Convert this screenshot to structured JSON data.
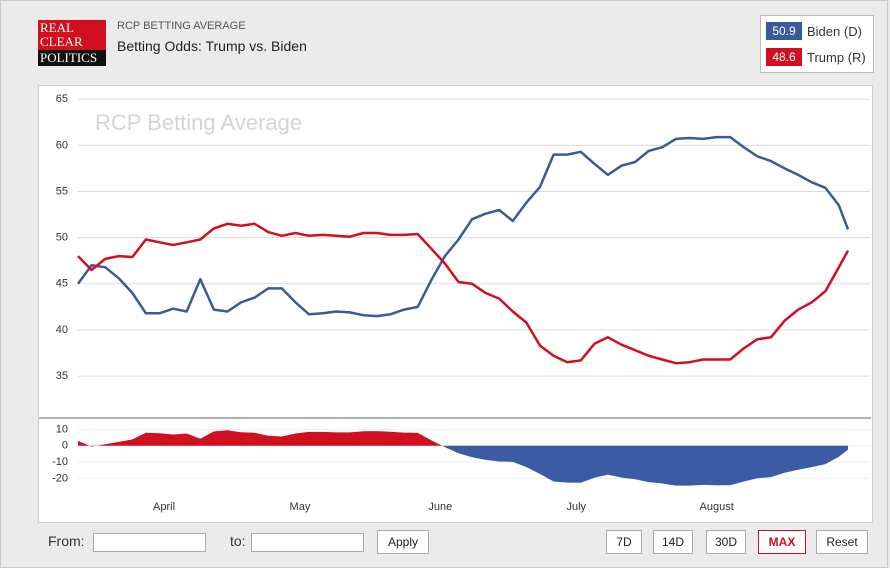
{
  "logo": [
    "REAL",
    "CLEAR",
    "POLITICS"
  ],
  "header": {
    "kicker": "RCP BETTING AVERAGE",
    "title": "Betting Odds: Trump vs. Biden"
  },
  "chart_data": [
    {
      "type": "line",
      "watermark": "RCP Betting Average",
      "x": [
        0,
        3,
        6,
        9,
        12,
        15,
        18,
        21,
        24,
        27,
        30,
        33,
        36,
        39,
        42,
        45,
        48,
        51,
        54,
        57,
        60,
        63,
        66,
        69,
        72,
        75,
        78,
        81,
        84,
        87,
        90,
        93,
        96,
        99,
        102,
        105,
        108,
        111,
        114,
        117,
        120,
        123,
        126,
        129,
        132,
        135,
        138,
        141,
        144,
        147,
        150,
        153,
        156,
        159,
        162,
        165,
        168,
        170
      ],
      "xlim": [
        0,
        170
      ],
      "ylim": [
        31,
        66
      ],
      "yticks": [
        35,
        40,
        45,
        50,
        55,
        60,
        65
      ],
      "grid": true,
      "series": [
        {
          "name": "Biden (D)",
          "color": "#3a5a9b",
          "values": [
            45,
            47,
            46.8,
            45.6,
            44,
            41.8,
            41.8,
            42.3,
            42,
            45.5,
            42.2,
            42,
            43,
            43.5,
            44.5,
            44.5,
            43,
            41.7,
            41.8,
            42,
            41.9,
            41.6,
            41.5,
            41.7,
            42.2,
            42.5,
            45.4,
            48,
            49.8,
            52,
            52.6,
            53,
            51.8,
            53.8,
            55.5,
            59,
            59,
            59.3,
            58,
            56.8,
            57.8,
            58.2,
            59.4,
            59.8,
            60.7,
            60.8,
            60.7,
            60.9,
            60.9,
            59.8,
            58.8,
            58.3,
            57.5,
            56.8,
            56,
            55.4,
            53.5,
            50.9
          ]
        },
        {
          "name": "Trump (R)",
          "color": "#d0101e",
          "values": [
            48,
            46.5,
            47.7,
            48,
            47.9,
            49.8,
            49.5,
            49.2,
            49.5,
            49.8,
            51,
            51.5,
            51.3,
            51.5,
            50.6,
            50.2,
            50.5,
            50.2,
            50.3,
            50.2,
            50.1,
            50.5,
            50.5,
            50.3,
            50.3,
            50.4,
            48.8,
            47.2,
            45.2,
            45,
            44,
            43.4,
            42,
            40.8,
            38.3,
            37.2,
            36.5,
            36.7,
            38.5,
            39.2,
            38.4,
            37.8,
            37.2,
            36.8,
            36.4,
            36.5,
            36.8,
            36.8,
            36.8,
            38,
            39,
            39.2,
            41,
            42.2,
            43,
            44.2,
            46.8,
            48.6
          ]
        }
      ]
    },
    {
      "type": "area",
      "x": [
        0,
        3,
        6,
        9,
        12,
        15,
        18,
        21,
        24,
        27,
        30,
        33,
        36,
        39,
        42,
        45,
        48,
        51,
        54,
        57,
        60,
        63,
        66,
        69,
        72,
        75,
        78,
        81,
        84,
        87,
        90,
        93,
        96,
        99,
        102,
        105,
        108,
        111,
        114,
        117,
        120,
        123,
        126,
        129,
        132,
        135,
        138,
        141,
        144,
        147,
        150,
        153,
        156,
        159,
        162,
        165,
        168,
        170
      ],
      "xlim": [
        0,
        170
      ],
      "ylim": [
        -27,
        17
      ],
      "yticks": [
        -20,
        -10,
        0,
        10
      ],
      "xticks": [
        {
          "value": 19,
          "label": "April"
        },
        {
          "value": 49,
          "label": "May"
        },
        {
          "value": 80,
          "label": "June"
        },
        {
          "value": 110,
          "label": "July"
        },
        {
          "value": 141,
          "label": "August"
        }
      ],
      "positive_color": "#d0101e",
      "negative_color": "#3b5ba5",
      "values": [
        3,
        -0.5,
        0.9,
        2.4,
        3.9,
        8,
        7.7,
        6.9,
        7.5,
        4.3,
        8.8,
        9.5,
        8.3,
        8,
        6.1,
        5.7,
        7.5,
        8.5,
        8.5,
        8.2,
        8.2,
        8.9,
        9,
        8.6,
        8.1,
        7.9,
        3.4,
        -0.8,
        -4.6,
        -7,
        -8.6,
        -9.6,
        -9.8,
        -13,
        -17.2,
        -21.8,
        -22.5,
        -22.6,
        -19.5,
        -17.6,
        -19.4,
        -20.4,
        -22.2,
        -23,
        -24.3,
        -24.3,
        -23.9,
        -24.1,
        -24.1,
        -21.8,
        -19.8,
        -19.1,
        -16.5,
        -14.6,
        -13,
        -11.2,
        -6.7,
        -2.3
      ]
    }
  ],
  "controls": {
    "from": "From:",
    "to": "to:",
    "apply": "Apply",
    "ranges": [
      "7D",
      "14D",
      "30D",
      "MAX",
      "Reset"
    ]
  }
}
